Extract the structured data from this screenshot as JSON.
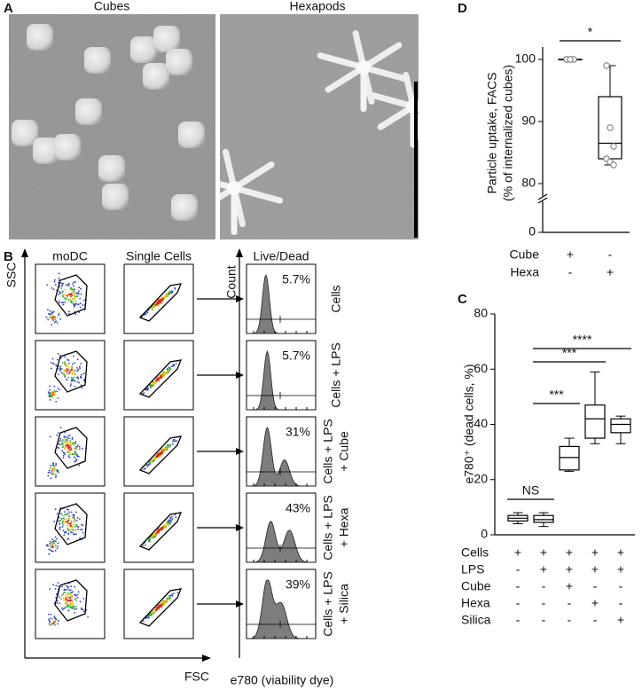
{
  "panel_labels": [
    "A",
    "B",
    "C",
    "D"
  ],
  "micrographs": {
    "titles": [
      "Cubes",
      "Hexapods"
    ]
  },
  "flow": {
    "columns": [
      "moDC",
      "Single Cells",
      "Live/Dead"
    ],
    "y_label": "SSC",
    "x_label": "FSC",
    "count_label": "Count",
    "dye_label": "e780 (viability dye)",
    "rows": [
      {
        "label": [
          "Cells"
        ],
        "percent": "5.7%"
      },
      {
        "label": [
          "Cells + LPS"
        ],
        "percent": "5.7%"
      },
      {
        "label": [
          "Cells + LPS",
          "+ Cube"
        ],
        "percent": "31%"
      },
      {
        "label": [
          "Cells + LPS",
          "+ Hexa"
        ],
        "percent": "43%"
      },
      {
        "label": [
          "Cells + LPS",
          "+ Silica"
        ],
        "percent": "39%"
      }
    ]
  },
  "chart_data": [
    {
      "type": "box",
      "ylabel": "e780⁺ (dead cells, %)",
      "ylim": [
        0,
        80
      ],
      "yticks": [
        0,
        20,
        40,
        60,
        80
      ],
      "boxes": [
        {
          "min": 4,
          "q1": 5,
          "median": 6,
          "q3": 7,
          "max": 8
        },
        {
          "min": 3,
          "q1": 4.5,
          "median": 5.5,
          "q3": 7,
          "max": 8
        },
        {
          "min": 23,
          "q1": 23.5,
          "median": 28,
          "q3": 32,
          "max": 35
        },
        {
          "min": 33,
          "q1": 35,
          "median": 42,
          "q3": 47,
          "max": 59
        },
        {
          "min": 33,
          "q1": 37,
          "median": 40,
          "q3": 42,
          "max": 43
        }
      ],
      "conditions": [
        {
          "name": "Cells",
          "signs": [
            "+",
            "+",
            "+",
            "+",
            "+"
          ]
        },
        {
          "name": "LPS",
          "signs": [
            "-",
            "+",
            "+",
            "+",
            "+"
          ]
        },
        {
          "name": "Cube",
          "signs": [
            "-",
            "-",
            "+",
            "-",
            "-"
          ]
        },
        {
          "name": "Hexa",
          "signs": [
            "-",
            "-",
            "-",
            "+",
            "-"
          ]
        },
        {
          "name": "Silica",
          "signs": [
            "-",
            "-",
            "-",
            "-",
            "+"
          ]
        }
      ],
      "annotations": [
        {
          "text": "NS",
          "pair": [
            0,
            1
          ]
        },
        {
          "text": "***",
          "pair": [
            1,
            2
          ]
        },
        {
          "text": "***",
          "pair": [
            1,
            3
          ]
        },
        {
          "text": "****",
          "pair": [
            1,
            4
          ]
        }
      ]
    },
    {
      "type": "box",
      "ylabel": [
        "Particle uptake, FACS",
        "(% of internalized cubes)"
      ],
      "ylim": [
        0,
        102
      ],
      "axis_break": [
        5,
        78
      ],
      "yticks": [
        0,
        80,
        90,
        100
      ],
      "boxes": [
        {
          "min": 100,
          "q1": 100,
          "median": 100,
          "q3": 100,
          "max": 100,
          "points": [
            100,
            100,
            100,
            100,
            100
          ]
        },
        {
          "min": 83,
          "q1": 84,
          "median": 86.5,
          "q3": 94,
          "max": 99,
          "points": [
            99,
            89,
            86,
            84,
            83.5,
            83
          ]
        }
      ],
      "conditions": [
        {
          "name": "Cube",
          "signs": [
            "+",
            "-"
          ]
        },
        {
          "name": "Hexa",
          "signs": [
            "-",
            "+"
          ]
        }
      ],
      "annotations": [
        {
          "text": "*",
          "pair": [
            0,
            1
          ]
        }
      ]
    }
  ]
}
